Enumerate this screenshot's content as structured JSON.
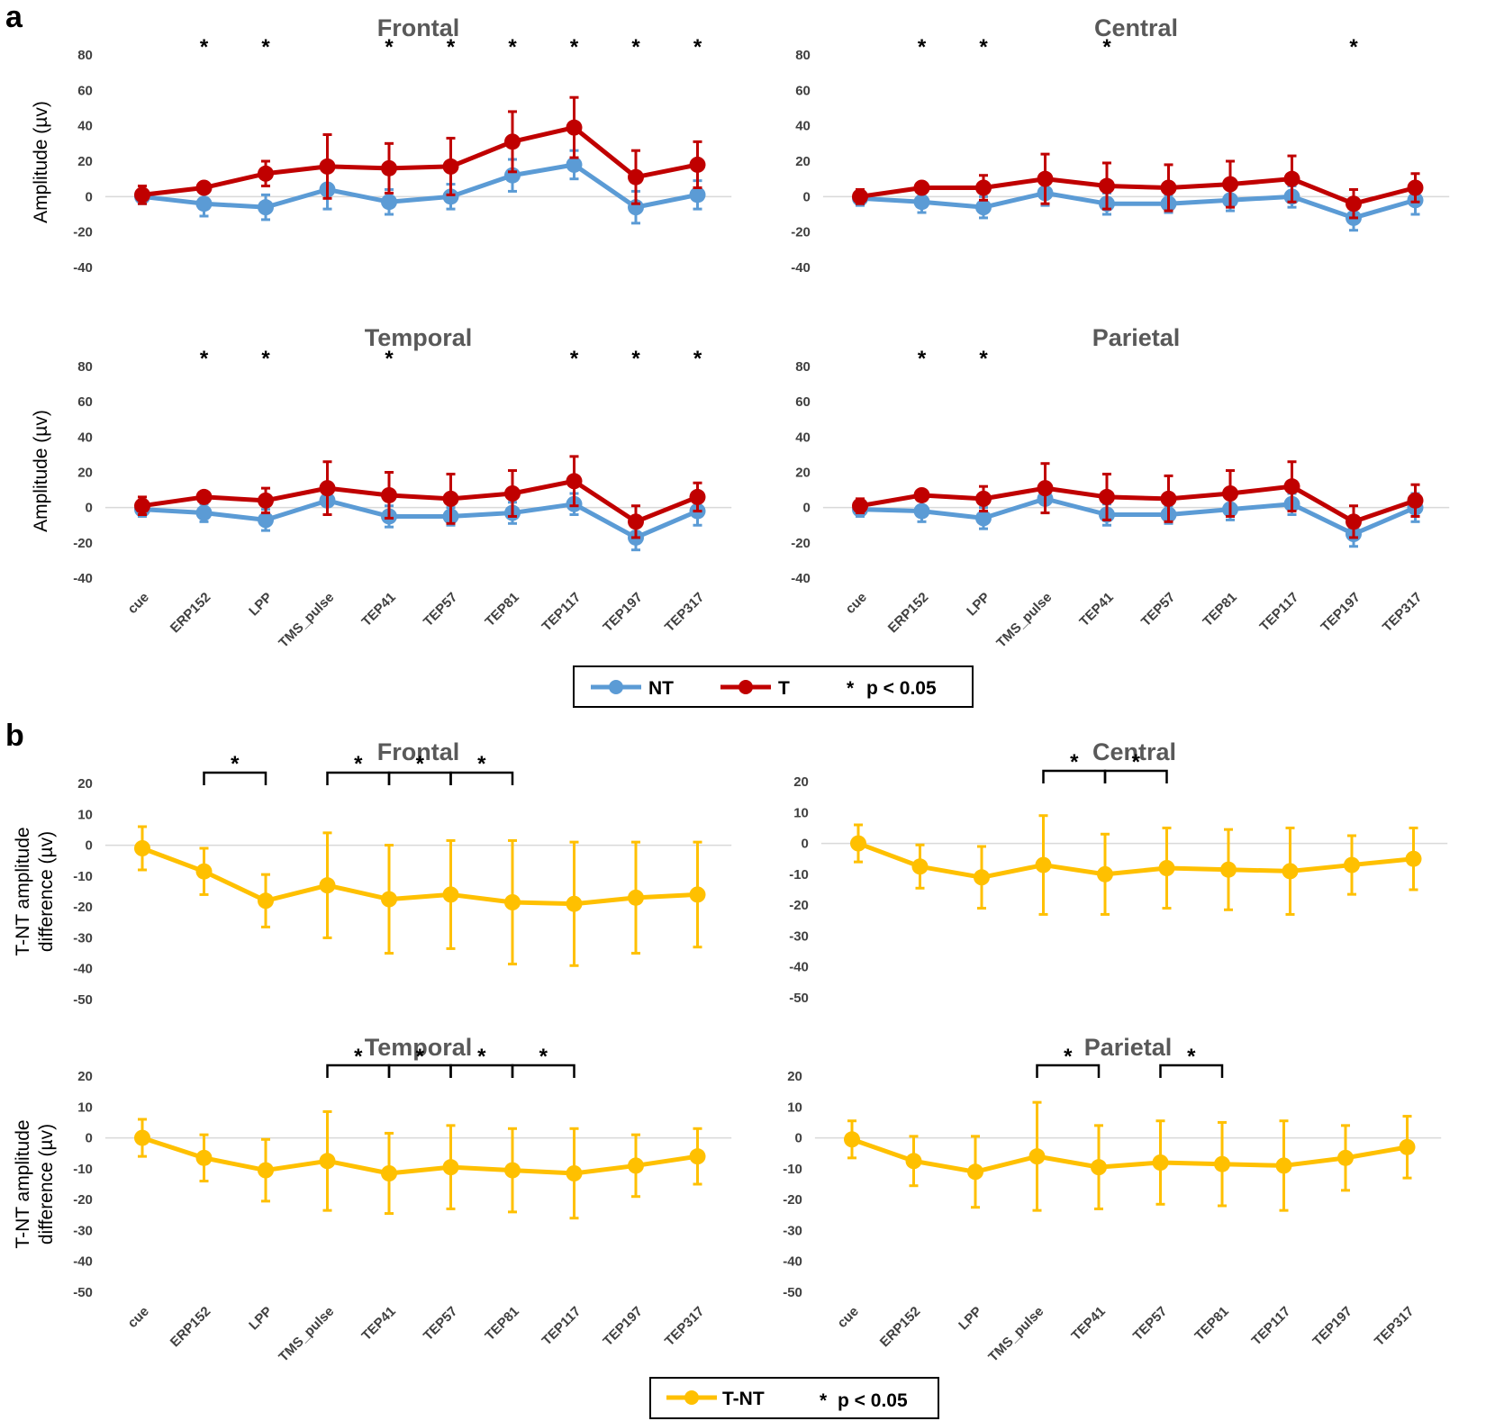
{
  "figure": {
    "colors": {
      "NT": "#5b9bd5",
      "T": "#c00000",
      "T-NT": "#ffc000",
      "axis": "#d9d9d9",
      "text": "#404040"
    },
    "panel_labels": [
      "a",
      "b"
    ],
    "legend_a": {
      "items": [
        "NT",
        "T"
      ],
      "sig_text": "p < 0.05",
      "sig_symbol": "*"
    },
    "legend_b": {
      "items": [
        "T-NT"
      ],
      "sig_text": "p < 0.05",
      "sig_symbol": "*"
    }
  },
  "chart_data": [
    {
      "type": "line",
      "panel": "a",
      "title": "Frontal",
      "categories": [
        "cue",
        "ERP152",
        "LPP",
        "TMS_pulse",
        "TEP41",
        "TEP57",
        "TEP81",
        "TEP117",
        "TEP197",
        "TEP317"
      ],
      "ylabel": "Amplitude (µv)",
      "ylim": [
        -40,
        80
      ],
      "yticks": [
        80,
        60,
        40,
        20,
        0,
        -20,
        -40
      ],
      "series": [
        {
          "name": "NT",
          "values": [
            0,
            -4,
            -6,
            4,
            -3,
            0,
            12,
            18,
            -6,
            1
          ],
          "errors": [
            4,
            7,
            7,
            11,
            7,
            7,
            9,
            8,
            9,
            8
          ]
        },
        {
          "name": "T",
          "values": [
            1,
            5,
            13,
            17,
            16,
            17,
            31,
            39,
            11,
            18
          ],
          "errors": [
            5,
            3,
            7,
            18,
            14,
            16,
            17,
            17,
            15,
            13
          ]
        }
      ],
      "significant": [
        "ERP152",
        "LPP",
        "TEP41",
        "TEP57",
        "TEP81",
        "TEP117",
        "TEP197",
        "TEP317"
      ]
    },
    {
      "type": "line",
      "panel": "a",
      "title": "Central",
      "categories": [
        "cue",
        "ERP152",
        "LPP",
        "TMS_pulse",
        "TEP41",
        "TEP57",
        "TEP81",
        "TEP117",
        "TEP197",
        "TEP317"
      ],
      "ylabel": "",
      "ylim": [
        -40,
        80
      ],
      "yticks": [
        80,
        60,
        40,
        20,
        0,
        -20,
        -40
      ],
      "series": [
        {
          "name": "NT",
          "values": [
            -1,
            -3,
            -6,
            2,
            -4,
            -4,
            -2,
            0,
            -12,
            -2
          ],
          "errors": [
            4,
            6,
            6,
            7,
            6,
            5,
            6,
            6,
            7,
            8
          ]
        },
        {
          "name": "T",
          "values": [
            0,
            5,
            5,
            10,
            6,
            5,
            7,
            10,
            -4,
            5
          ],
          "errors": [
            4,
            3,
            7,
            14,
            13,
            13,
            13,
            13,
            8,
            8
          ]
        }
      ],
      "significant": [
        "ERP152",
        "LPP",
        "TEP41",
        "TEP197"
      ]
    },
    {
      "type": "line",
      "panel": "a",
      "title": "Temporal",
      "categories": [
        "cue",
        "ERP152",
        "LPP",
        "TMS_pulse",
        "TEP41",
        "TEP57",
        "TEP81",
        "TEP117",
        "TEP197",
        "TEP317"
      ],
      "ylabel": "Amplitude (µv)",
      "ylim": [
        -40,
        80
      ],
      "yticks": [
        80,
        60,
        40,
        20,
        0,
        -20,
        -40
      ],
      "series": [
        {
          "name": "NT",
          "values": [
            -1,
            -3,
            -7,
            4,
            -5,
            -5,
            -3,
            2,
            -17,
            -2
          ],
          "errors": [
            4,
            5,
            6,
            8,
            6,
            5,
            6,
            6,
            7,
            8
          ]
        },
        {
          "name": "T",
          "values": [
            1,
            6,
            4,
            11,
            7,
            5,
            8,
            15,
            -8,
            6
          ],
          "errors": [
            5,
            3,
            7,
            15,
            13,
            14,
            13,
            14,
            9,
            8
          ]
        }
      ],
      "significant": [
        "ERP152",
        "LPP",
        "TEP41",
        "TEP117",
        "TEP197",
        "TEP317"
      ]
    },
    {
      "type": "line",
      "panel": "a",
      "title": "Parietal",
      "categories": [
        "cue",
        "ERP152",
        "LPP",
        "TMS_pulse",
        "TEP41",
        "TEP57",
        "TEP81",
        "TEP117",
        "TEP197",
        "TEP317"
      ],
      "ylabel": "",
      "ylim": [
        -40,
        80
      ],
      "yticks": [
        80,
        60,
        40,
        20,
        0,
        -20,
        -40
      ],
      "series": [
        {
          "name": "NT",
          "values": [
            -1,
            -2,
            -6,
            5,
            -4,
            -4,
            -1,
            2,
            -15,
            0
          ],
          "errors": [
            4,
            6,
            6,
            8,
            6,
            5,
            6,
            6,
            7,
            8
          ]
        },
        {
          "name": "T",
          "values": [
            1,
            7,
            5,
            11,
            6,
            5,
            8,
            12,
            -8,
            4
          ],
          "errors": [
            4,
            3,
            7,
            14,
            13,
            13,
            13,
            14,
            9,
            9
          ]
        }
      ],
      "significant": [
        "ERP152",
        "LPP"
      ]
    },
    {
      "type": "line",
      "panel": "b",
      "title": "Frontal",
      "categories": [
        "cue",
        "ERP152",
        "LPP",
        "TMS_pulse",
        "TEP41",
        "TEP57",
        "TEP81",
        "TEP117",
        "TEP197",
        "TEP317"
      ],
      "ylabel": "T-NT amplitude difference (µv)",
      "ylim": [
        -50,
        20
      ],
      "yticks": [
        20,
        10,
        0,
        -10,
        -20,
        -30,
        -40,
        -50
      ],
      "series": [
        {
          "name": "T-NT",
          "values": [
            -1,
            -8.5,
            -18,
            -13,
            -17.5,
            -16,
            -18.5,
            -19,
            -17,
            -16
          ],
          "errors": [
            7,
            7.5,
            8.5,
            17,
            17.5,
            17.5,
            20,
            20,
            18,
            17
          ]
        }
      ],
      "brackets": [
        [
          "ERP152",
          "LPP"
        ],
        [
          "TMS_pulse",
          "TEP41"
        ],
        [
          "TEP41",
          "TEP57"
        ],
        [
          "TEP57",
          "TEP81"
        ]
      ],
      "sig_symbol": "*"
    },
    {
      "type": "line",
      "panel": "b",
      "title": "Central",
      "categories": [
        "cue",
        "ERP152",
        "LPP",
        "TMS_pulse",
        "TEP41",
        "TEP57",
        "TEP81",
        "TEP117",
        "TEP197",
        "TEP317"
      ],
      "ylabel": "",
      "ylim": [
        -50,
        20
      ],
      "yticks": [
        20,
        10,
        0,
        -10,
        -20,
        -30,
        -40,
        -50
      ],
      "series": [
        {
          "name": "T-NT",
          "values": [
            0,
            -7.5,
            -11,
            -7,
            -10,
            -8,
            -8.5,
            -9,
            -7,
            -5
          ],
          "errors": [
            6,
            7,
            10,
            16,
            13,
            13,
            13,
            14,
            9.5,
            10
          ]
        }
      ],
      "brackets": [
        [
          "TMS_pulse",
          "TEP41"
        ],
        [
          "TEP41",
          "TEP57"
        ]
      ],
      "sig_symbol": "*"
    },
    {
      "type": "line",
      "panel": "b",
      "title": "Temporal",
      "categories": [
        "cue",
        "ERP152",
        "LPP",
        "TMS_pulse",
        "TEP41",
        "TEP57",
        "TEP81",
        "TEP117",
        "TEP197",
        "TEP317"
      ],
      "ylabel": "T-NT amplitude difference (µv)",
      "ylim": [
        -50,
        20
      ],
      "yticks": [
        20,
        10,
        0,
        -10,
        -20,
        -30,
        -40,
        -50
      ],
      "series": [
        {
          "name": "T-NT",
          "values": [
            0,
            -6.5,
            -10.5,
            -7.5,
            -11.5,
            -9.5,
            -10.5,
            -11.5,
            -9,
            -6
          ],
          "errors": [
            6,
            7.5,
            10,
            16,
            13,
            13.5,
            13.5,
            14.5,
            10,
            9
          ]
        }
      ],
      "brackets": [
        [
          "TMS_pulse",
          "TEP41"
        ],
        [
          "TEP41",
          "TEP57"
        ],
        [
          "TEP57",
          "TEP81"
        ],
        [
          "TEP81",
          "TEP117"
        ]
      ],
      "sig_symbol": "*"
    },
    {
      "type": "line",
      "panel": "b",
      "title": "Parietal",
      "categories": [
        "cue",
        "ERP152",
        "LPP",
        "TMS_pulse",
        "TEP41",
        "TEP57",
        "TEP81",
        "TEP117",
        "TEP197",
        "TEP317"
      ],
      "ylabel": "",
      "ylim": [
        -50,
        20
      ],
      "yticks": [
        20,
        10,
        0,
        -10,
        -20,
        -30,
        -40,
        -50
      ],
      "series": [
        {
          "name": "T-NT",
          "values": [
            -0.5,
            -7.5,
            -11,
            -6,
            -9.5,
            -8,
            -8.5,
            -9,
            -6.5,
            -3
          ],
          "errors": [
            6,
            8,
            11.5,
            17.5,
            13.5,
            13.5,
            13.5,
            14.5,
            10.5,
            10
          ]
        }
      ],
      "brackets": [
        [
          "TMS_pulse",
          "TEP41"
        ],
        [
          "TEP57",
          "TEP81"
        ]
      ],
      "sig_symbol": "*"
    }
  ]
}
